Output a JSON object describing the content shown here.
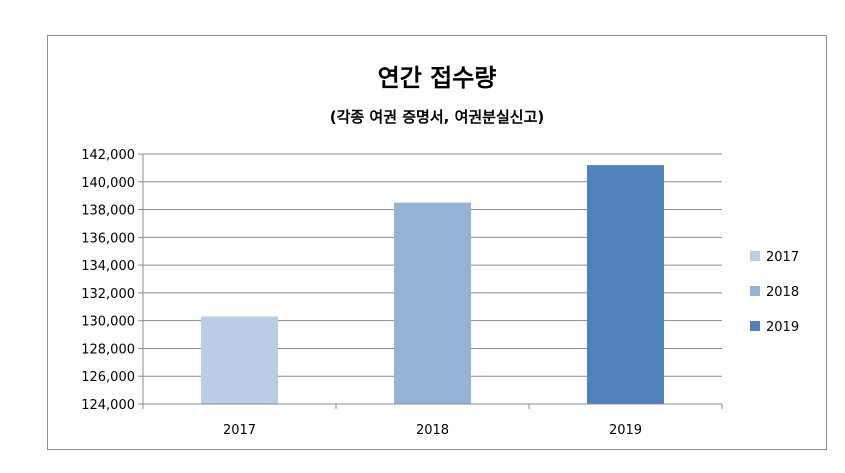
{
  "chart_data": {
    "type": "bar",
    "title": "연간 접수량",
    "subtitle": "(각종 여권 증명서, 여권분실신고)",
    "categories": [
      "2017",
      "2018",
      "2019"
    ],
    "series": [
      {
        "name": "2017",
        "values": [
          130300,
          null,
          null
        ],
        "color": "#b9cde5"
      },
      {
        "name": "2018",
        "values": [
          null,
          138500,
          null
        ],
        "color": "#95b3d7"
      },
      {
        "name": "2019",
        "values": [
          null,
          null,
          141200
        ],
        "color": "#4f81bd"
      }
    ],
    "ylim": [
      124000,
      142000
    ],
    "yticks": [
      "124,000",
      "126,000",
      "128,000",
      "130,000",
      "132,000",
      "134,000",
      "136,000",
      "138,000",
      "140,000",
      "142,000"
    ],
    "ytick_values": [
      124000,
      126000,
      128000,
      130000,
      132000,
      134000,
      136000,
      138000,
      140000,
      142000
    ],
    "grid": true,
    "legend": "right"
  }
}
